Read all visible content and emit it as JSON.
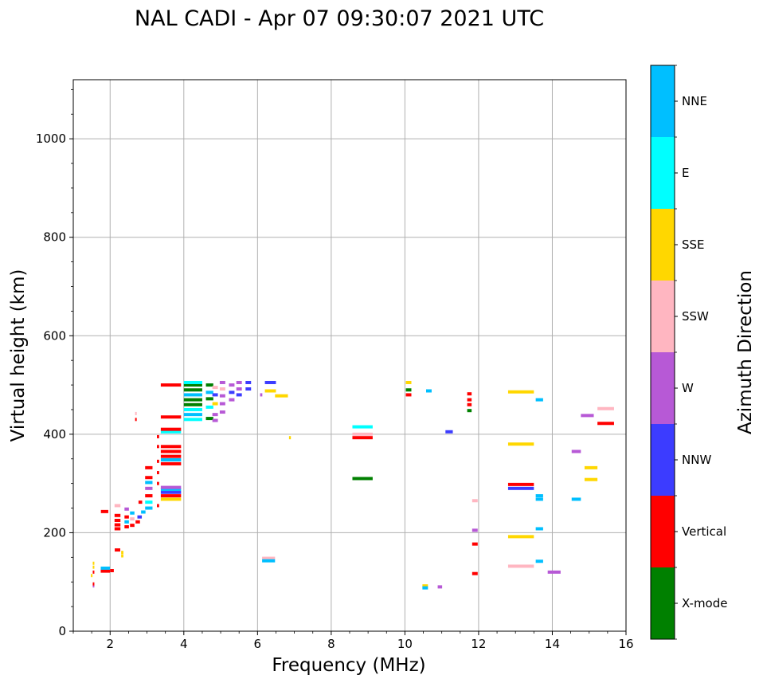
{
  "chart_data": {
    "type": "scatter",
    "title": "NAL CADI - Apr 07 09:30:07 2021 UTC",
    "xlabel": "Frequency (MHz)",
    "ylabel": "Virtual height (km)",
    "xlim": [
      1,
      16
    ],
    "ylim": [
      0,
      1120
    ],
    "xticks": [
      2,
      4,
      6,
      8,
      10,
      12,
      14,
      16
    ],
    "yticks": [
      0,
      200,
      400,
      600,
      800,
      1000
    ],
    "grid": true,
    "marker": "horizontal dash",
    "colorbar": {
      "label": "Azimuth Direction",
      "categories": [
        {
          "name": "X-mode",
          "color": "#008000"
        },
        {
          "name": "Vertical",
          "color": "#ff0000"
        },
        {
          "name": "NNW",
          "color": "#3c3cff"
        },
        {
          "name": "W",
          "color": "#b759d6"
        },
        {
          "name": "SSW",
          "color": "#ffb6c1"
        },
        {
          "name": "SSE",
          "color": "#ffd700"
        },
        {
          "name": "E",
          "color": "#00ffff"
        },
        {
          "name": "NNE",
          "color": "#00bfff"
        }
      ]
    },
    "points": [
      {
        "f": 1.5,
        "h": 113,
        "w": 0.04,
        "c": "SSE"
      },
      {
        "f": 1.55,
        "h": 120,
        "w": 0.04,
        "c": "Vertical"
      },
      {
        "f": 1.55,
        "h": 130,
        "w": 0.04,
        "c": "SSE"
      },
      {
        "f": 1.55,
        "h": 138,
        "w": 0.04,
        "c": "SSE"
      },
      {
        "f": 1.55,
        "h": 92,
        "w": 0.03,
        "c": "W"
      },
      {
        "f": 1.55,
        "h": 96,
        "w": 0.03,
        "c": "Vertical"
      },
      {
        "f": 1.87,
        "h": 122,
        "w": 0.25,
        "c": "Vertical"
      },
      {
        "f": 1.87,
        "h": 128,
        "w": 0.25,
        "c": "NNE"
      },
      {
        "f": 2.05,
        "h": 123,
        "w": 0.1,
        "c": "Vertical"
      },
      {
        "f": 1.85,
        "h": 243,
        "w": 0.2,
        "c": "Vertical"
      },
      {
        "f": 2.2,
        "h": 165,
        "w": 0.15,
        "c": "Vertical"
      },
      {
        "f": 2.33,
        "h": 153,
        "w": 0.06,
        "c": "SSE"
      },
      {
        "f": 2.33,
        "h": 160,
        "w": 0.06,
        "c": "SSE"
      },
      {
        "f": 2.2,
        "h": 208,
        "w": 0.16,
        "c": "Vertical"
      },
      {
        "f": 2.2,
        "h": 216,
        "w": 0.16,
        "c": "Vertical"
      },
      {
        "f": 2.2,
        "h": 225,
        "w": 0.16,
        "c": "Vertical"
      },
      {
        "f": 2.2,
        "h": 235,
        "w": 0.16,
        "c": "Vertical"
      },
      {
        "f": 2.2,
        "h": 255,
        "w": 0.16,
        "c": "SSW"
      },
      {
        "f": 2.45,
        "h": 212,
        "w": 0.12,
        "c": "Vertical"
      },
      {
        "f": 2.45,
        "h": 222,
        "w": 0.12,
        "c": "NNE"
      },
      {
        "f": 2.45,
        "h": 232,
        "w": 0.12,
        "c": "Vertical"
      },
      {
        "f": 2.45,
        "h": 248,
        "w": 0.12,
        "c": "W"
      },
      {
        "f": 2.6,
        "h": 215,
        "w": 0.12,
        "c": "Vertical"
      },
      {
        "f": 2.6,
        "h": 228,
        "w": 0.12,
        "c": "SSW"
      },
      {
        "f": 2.6,
        "h": 240,
        "w": 0.12,
        "c": "NNE"
      },
      {
        "f": 2.75,
        "h": 222,
        "w": 0.12,
        "c": "Vertical"
      },
      {
        "f": 2.8,
        "h": 232,
        "w": 0.12,
        "c": "NNW"
      },
      {
        "f": 2.82,
        "h": 262,
        "w": 0.1,
        "c": "Vertical"
      },
      {
        "f": 2.7,
        "h": 430,
        "w": 0.04,
        "c": "Vertical"
      },
      {
        "f": 2.7,
        "h": 442,
        "w": 0.04,
        "c": "SSW"
      },
      {
        "f": 2.9,
        "h": 242,
        "w": 0.12,
        "c": "NNE"
      },
      {
        "f": 3.05,
        "h": 250,
        "w": 0.2,
        "c": "NNE"
      },
      {
        "f": 3.05,
        "h": 262,
        "w": 0.2,
        "c": "E"
      },
      {
        "f": 3.05,
        "h": 275,
        "w": 0.2,
        "c": "Vertical"
      },
      {
        "f": 3.05,
        "h": 290,
        "w": 0.2,
        "c": "W"
      },
      {
        "f": 3.05,
        "h": 302,
        "w": 0.2,
        "c": "NNE"
      },
      {
        "f": 3.05,
        "h": 312,
        "w": 0.2,
        "c": "Vertical"
      },
      {
        "f": 3.05,
        "h": 332,
        "w": 0.2,
        "c": "Vertical"
      },
      {
        "f": 3.3,
        "h": 255,
        "w": 0.06,
        "c": "Vertical"
      },
      {
        "f": 3.3,
        "h": 300,
        "w": 0.06,
        "c": "Vertical"
      },
      {
        "f": 3.3,
        "h": 322,
        "w": 0.06,
        "c": "Vertical"
      },
      {
        "f": 3.3,
        "h": 345,
        "w": 0.06,
        "c": "Vertical"
      },
      {
        "f": 3.3,
        "h": 375,
        "w": 0.06,
        "c": "Vertical"
      },
      {
        "f": 3.3,
        "h": 395,
        "w": 0.06,
        "c": "Vertical"
      },
      {
        "f": 3.65,
        "h": 268,
        "w": 0.55,
        "c": "SSE"
      },
      {
        "f": 3.65,
        "h": 275,
        "w": 0.55,
        "c": "Vertical"
      },
      {
        "f": 3.65,
        "h": 282,
        "w": 0.55,
        "c": "NNW"
      },
      {
        "f": 3.65,
        "h": 288,
        "w": 0.55,
        "c": "NNE"
      },
      {
        "f": 3.65,
        "h": 292,
        "w": 0.55,
        "c": "W"
      },
      {
        "f": 3.65,
        "h": 340,
        "w": 0.55,
        "c": "Vertical"
      },
      {
        "f": 3.65,
        "h": 348,
        "w": 0.55,
        "c": "NNE"
      },
      {
        "f": 3.65,
        "h": 355,
        "w": 0.55,
        "c": "Vertical"
      },
      {
        "f": 3.65,
        "h": 365,
        "w": 0.55,
        "c": "Vertical"
      },
      {
        "f": 3.65,
        "h": 375,
        "w": 0.55,
        "c": "Vertical"
      },
      {
        "f": 3.65,
        "h": 405,
        "w": 0.55,
        "c": "E"
      },
      {
        "f": 3.65,
        "h": 410,
        "w": 0.55,
        "c": "Vertical"
      },
      {
        "f": 3.65,
        "h": 435,
        "w": 0.55,
        "c": "Vertical"
      },
      {
        "f": 3.65,
        "h": 500,
        "w": 0.55,
        "c": "Vertical"
      },
      {
        "f": 4.25,
        "h": 430,
        "w": 0.5,
        "c": "E"
      },
      {
        "f": 4.25,
        "h": 440,
        "w": 0.5,
        "c": "NNE"
      },
      {
        "f": 4.25,
        "h": 450,
        "w": 0.5,
        "c": "E"
      },
      {
        "f": 4.25,
        "h": 460,
        "w": 0.5,
        "c": "X-mode"
      },
      {
        "f": 4.25,
        "h": 470,
        "w": 0.5,
        "c": "X-mode"
      },
      {
        "f": 4.25,
        "h": 480,
        "w": 0.5,
        "c": "NNE"
      },
      {
        "f": 4.25,
        "h": 490,
        "w": 0.5,
        "c": "X-mode"
      },
      {
        "f": 4.25,
        "h": 500,
        "w": 0.5,
        "c": "X-mode"
      },
      {
        "f": 4.25,
        "h": 505,
        "w": 0.5,
        "c": "E"
      },
      {
        "f": 4.7,
        "h": 432,
        "w": 0.2,
        "c": "X-mode"
      },
      {
        "f": 4.7,
        "h": 455,
        "w": 0.2,
        "c": "E"
      },
      {
        "f": 4.7,
        "h": 472,
        "w": 0.2,
        "c": "X-mode"
      },
      {
        "f": 4.7,
        "h": 485,
        "w": 0.2,
        "c": "NNE"
      },
      {
        "f": 4.7,
        "h": 500,
        "w": 0.2,
        "c": "X-mode"
      },
      {
        "f": 4.85,
        "h": 428,
        "w": 0.15,
        "c": "W"
      },
      {
        "f": 4.85,
        "h": 440,
        "w": 0.15,
        "c": "W"
      },
      {
        "f": 4.85,
        "h": 462,
        "w": 0.15,
        "c": "SSE"
      },
      {
        "f": 4.85,
        "h": 480,
        "w": 0.15,
        "c": "NNW"
      },
      {
        "f": 4.85,
        "h": 495,
        "w": 0.15,
        "c": "SSW"
      },
      {
        "f": 5.05,
        "h": 445,
        "w": 0.15,
        "c": "W"
      },
      {
        "f": 5.05,
        "h": 462,
        "w": 0.15,
        "c": "W"
      },
      {
        "f": 5.05,
        "h": 478,
        "w": 0.15,
        "c": "W"
      },
      {
        "f": 5.05,
        "h": 492,
        "w": 0.15,
        "c": "SSW"
      },
      {
        "f": 5.05,
        "h": 505,
        "w": 0.15,
        "c": "W"
      },
      {
        "f": 5.3,
        "h": 470,
        "w": 0.15,
        "c": "W"
      },
      {
        "f": 5.3,
        "h": 485,
        "w": 0.15,
        "c": "NNW"
      },
      {
        "f": 5.3,
        "h": 500,
        "w": 0.15,
        "c": "W"
      },
      {
        "f": 5.5,
        "h": 480,
        "w": 0.15,
        "c": "NNW"
      },
      {
        "f": 5.5,
        "h": 492,
        "w": 0.15,
        "c": "W"
      },
      {
        "f": 5.5,
        "h": 505,
        "w": 0.15,
        "c": "W"
      },
      {
        "f": 5.75,
        "h": 492,
        "w": 0.15,
        "c": "NNW"
      },
      {
        "f": 5.75,
        "h": 505,
        "w": 0.15,
        "c": "NNW"
      },
      {
        "f": 6.1,
        "h": 480,
        "w": 0.06,
        "c": "W"
      },
      {
        "f": 6.35,
        "h": 488,
        "w": 0.3,
        "c": "SSE"
      },
      {
        "f": 6.35,
        "h": 505,
        "w": 0.3,
        "c": "NNW"
      },
      {
        "f": 6.65,
        "h": 478,
        "w": 0.35,
        "c": "SSE"
      },
      {
        "f": 6.88,
        "h": 393,
        "w": 0.05,
        "c": "SSE"
      },
      {
        "f": 6.3,
        "h": 148,
        "w": 0.35,
        "c": "SSW"
      },
      {
        "f": 6.3,
        "h": 143,
        "w": 0.35,
        "c": "NNE"
      },
      {
        "f": 8.85,
        "h": 415,
        "w": 0.55,
        "c": "E"
      },
      {
        "f": 8.85,
        "h": 400,
        "w": 0.55,
        "c": "SSW"
      },
      {
        "f": 8.85,
        "h": 393,
        "w": 0.55,
        "c": "Vertical"
      },
      {
        "f": 8.85,
        "h": 310,
        "w": 0.55,
        "c": "X-mode"
      },
      {
        "f": 10.1,
        "h": 505,
        "w": 0.15,
        "c": "SSE"
      },
      {
        "f": 10.1,
        "h": 490,
        "w": 0.15,
        "c": "X-mode"
      },
      {
        "f": 10.1,
        "h": 480,
        "w": 0.15,
        "c": "Vertical"
      },
      {
        "f": 10.65,
        "h": 488,
        "w": 0.15,
        "c": "NNE"
      },
      {
        "f": 10.55,
        "h": 92,
        "w": 0.15,
        "c": "SSE"
      },
      {
        "f": 10.55,
        "h": 88,
        "w": 0.15,
        "c": "NNE"
      },
      {
        "f": 10.95,
        "h": 90,
        "w": 0.12,
        "c": "W"
      },
      {
        "f": 11.2,
        "h": 405,
        "w": 0.2,
        "c": "NNW"
      },
      {
        "f": 11.75,
        "h": 482,
        "w": 0.12,
        "c": "Vertical"
      },
      {
        "f": 11.75,
        "h": 470,
        "w": 0.12,
        "c": "Vertical"
      },
      {
        "f": 11.75,
        "h": 460,
        "w": 0.12,
        "c": "Vertical"
      },
      {
        "f": 11.75,
        "h": 448,
        "w": 0.12,
        "c": "X-mode"
      },
      {
        "f": 11.9,
        "h": 265,
        "w": 0.15,
        "c": "SSW"
      },
      {
        "f": 11.9,
        "h": 205,
        "w": 0.15,
        "c": "W"
      },
      {
        "f": 11.9,
        "h": 177,
        "w": 0.15,
        "c": "Vertical"
      },
      {
        "f": 11.9,
        "h": 117,
        "w": 0.15,
        "c": "Vertical"
      },
      {
        "f": 13.15,
        "h": 486,
        "w": 0.7,
        "c": "SSE"
      },
      {
        "f": 13.15,
        "h": 380,
        "w": 0.7,
        "c": "SSE"
      },
      {
        "f": 13.15,
        "h": 298,
        "w": 0.7,
        "c": "Vertical"
      },
      {
        "f": 13.15,
        "h": 290,
        "w": 0.7,
        "c": "NNW"
      },
      {
        "f": 13.15,
        "h": 192,
        "w": 0.7,
        "c": "SSE"
      },
      {
        "f": 13.15,
        "h": 132,
        "w": 0.7,
        "c": "SSW"
      },
      {
        "f": 13.65,
        "h": 470,
        "w": 0.2,
        "c": "NNE"
      },
      {
        "f": 13.65,
        "h": 275,
        "w": 0.2,
        "c": "NNE"
      },
      {
        "f": 13.65,
        "h": 268,
        "w": 0.2,
        "c": "NNE"
      },
      {
        "f": 13.65,
        "h": 208,
        "w": 0.2,
        "c": "NNE"
      },
      {
        "f": 13.65,
        "h": 142,
        "w": 0.2,
        "c": "NNE"
      },
      {
        "f": 14.05,
        "h": 120,
        "w": 0.35,
        "c": "W"
      },
      {
        "f": 14.65,
        "h": 365,
        "w": 0.25,
        "c": "W"
      },
      {
        "f": 14.65,
        "h": 268,
        "w": 0.25,
        "c": "NNE"
      },
      {
        "f": 14.95,
        "h": 438,
        "w": 0.35,
        "c": "W"
      },
      {
        "f": 15.05,
        "h": 332,
        "w": 0.35,
        "c": "SSE"
      },
      {
        "f": 15.05,
        "h": 308,
        "w": 0.35,
        "c": "SSE"
      },
      {
        "f": 15.45,
        "h": 452,
        "w": 0.45,
        "c": "SSW"
      },
      {
        "f": 15.45,
        "h": 422,
        "w": 0.45,
        "c": "Vertical"
      }
    ]
  }
}
